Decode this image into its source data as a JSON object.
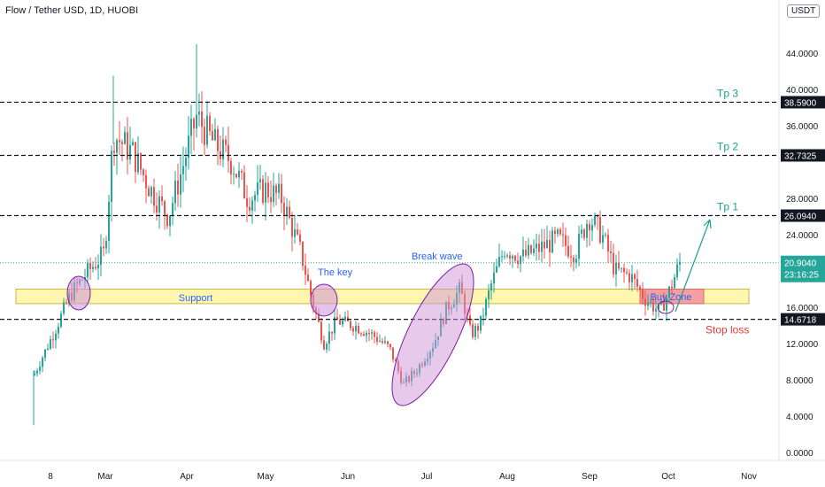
{
  "header": {
    "symbol_title": "Flow / Tether USD, 1D, HUOBI",
    "currency_button": "USDT"
  },
  "chart_data": {
    "type": "candlestick",
    "title": "Flow / Tether USD, 1D, HUOBI",
    "ylim": [
      -1.5,
      49
    ],
    "y_ticks": [
      "0.0000",
      "4.0000",
      "8.0000",
      "12.0000",
      "16.0000",
      "24.0000",
      "28.0000",
      "36.0000",
      "40.0000",
      "44.0000"
    ],
    "x_ticks": [
      "8",
      "Mar",
      "Apr",
      "May",
      "Jun",
      "Jul",
      "Aug",
      "Sep",
      "Oct",
      "Nov"
    ],
    "candles_approx_path": [
      {
        "month": "Feb",
        "close": 8.5
      },
      {
        "month": "late Feb",
        "close": 18.0
      },
      {
        "month": "Mar",
        "close": 34.0
      },
      {
        "month": "mid Mar",
        "close": 26.0
      },
      {
        "month": "Apr",
        "close": 36.0
      },
      {
        "month": "late Apr",
        "close": 30.0
      },
      {
        "month": "May",
        "close": 30.0
      },
      {
        "month": "late May",
        "close": 13.5
      },
      {
        "month": "Jun",
        "close": 14.0
      },
      {
        "month": "late Jun",
        "close": 7.5
      },
      {
        "month": "Jul",
        "close": 15.0
      },
      {
        "month": "mid Jul",
        "close": 18.5
      },
      {
        "month": "Aug",
        "close": 22.0
      },
      {
        "month": "Sep",
        "close": 25.0
      },
      {
        "month": "late Sep",
        "close": 16.0
      },
      {
        "month": "Oct",
        "close": 20.9
      }
    ],
    "horizontal_levels": [
      {
        "name": "Tp 3",
        "value": 38.59,
        "label": "38.5900",
        "color": "#131722"
      },
      {
        "name": "Tp 2",
        "value": 32.7325,
        "label": "32.7325",
        "color": "#131722"
      },
      {
        "name": "Tp 1",
        "value": 26.094,
        "label": "26.0940",
        "color": "#131722"
      },
      {
        "name": "Stop loss",
        "value": 14.6718,
        "label": "14.6718",
        "color": "#131722"
      }
    ],
    "current_price": {
      "value": 20.904,
      "label": "20.9040",
      "countdown": "23:16:25",
      "color": "#26a69a"
    },
    "zones": [
      {
        "name": "Support",
        "from": 16.4,
        "to": 18.0,
        "color": "#fff7b0"
      },
      {
        "name": "Buy Zone",
        "from": 16.4,
        "to": 18.0,
        "color": "#f4a0a0"
      }
    ],
    "annotations": {
      "tp3": "Tp 3",
      "tp2": "Tp 2",
      "tp1": "Tp 1",
      "stop_loss": "Stop loss",
      "support": "Support",
      "buy_zone": "Buy Zone",
      "the_key": "The key",
      "break_wave": "Break wave"
    },
    "colors": {
      "up": "#26a69a",
      "down": "#ef5350",
      "level_label_bg": "#131722",
      "teal_text": "#1e9e91",
      "red_text": "#e53935",
      "ellipse_fill": "#ce93d8",
      "ellipse_stroke": "#7b1fa2"
    }
  }
}
